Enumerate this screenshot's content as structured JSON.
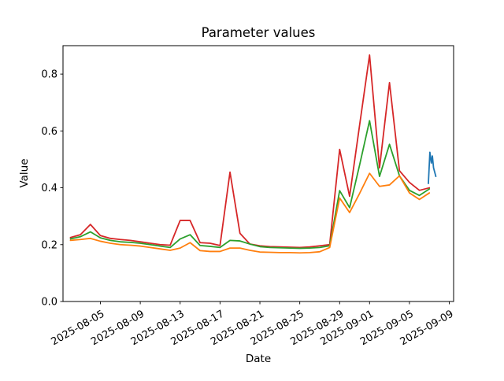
{
  "chart_data": {
    "type": "line",
    "title": "Parameter values",
    "xlabel": "Date",
    "ylabel": "Value",
    "grid": false,
    "legend": "none",
    "ylim": [
      0.0,
      0.9
    ],
    "xlim_dates": [
      "2025-08-01",
      "2025-09-10"
    ],
    "x_tick_labels": [
      "2025-08-05",
      "2025-08-09",
      "2025-08-13",
      "2025-08-17",
      "2025-08-21",
      "2025-08-25",
      "2025-08-29",
      "2025-09-01",
      "2025-09-05",
      "2025-09-09"
    ],
    "y_tick_labels": [
      "0.0",
      "0.2",
      "0.4",
      "0.6",
      "0.8"
    ],
    "epoch_date": "2025-08-02",
    "series": [
      {
        "name": "red",
        "color": "#d62728",
        "cadence": "daily",
        "start_date": "2025-08-02",
        "values": [
          0.225,
          0.235,
          0.271,
          0.232,
          0.222,
          0.218,
          0.215,
          0.21,
          0.205,
          0.2,
          0.198,
          0.285,
          0.285,
          0.207,
          0.205,
          0.197,
          0.455,
          0.24,
          0.202,
          0.196,
          0.193,
          0.192,
          0.191,
          0.19,
          0.192,
          0.196,
          0.2,
          0.535,
          0.37,
          0.62,
          0.867,
          0.47,
          0.77,
          0.46,
          0.419,
          0.391,
          0.4
        ]
      },
      {
        "name": "green",
        "color": "#2ca02c",
        "cadence": "daily",
        "start_date": "2025-08-02",
        "values": [
          0.22,
          0.228,
          0.245,
          0.224,
          0.215,
          0.21,
          0.208,
          0.205,
          0.2,
          0.195,
          0.19,
          0.22,
          0.235,
          0.197,
          0.194,
          0.19,
          0.215,
          0.213,
          0.202,
          0.193,
          0.19,
          0.189,
          0.188,
          0.187,
          0.188,
          0.19,
          0.196,
          0.39,
          0.33,
          0.48,
          0.636,
          0.44,
          0.553,
          0.442,
          0.391,
          0.373,
          0.396
        ]
      },
      {
        "name": "orange",
        "color": "#ff7f0e",
        "cadence": "daily",
        "start_date": "2025-08-02",
        "values": [
          0.215,
          0.218,
          0.222,
          0.212,
          0.205,
          0.2,
          0.198,
          0.195,
          0.19,
          0.185,
          0.18,
          0.188,
          0.207,
          0.179,
          0.176,
          0.176,
          0.188,
          0.188,
          0.18,
          0.174,
          0.173,
          0.172,
          0.172,
          0.171,
          0.172,
          0.175,
          0.19,
          0.364,
          0.313,
          0.38,
          0.451,
          0.405,
          0.41,
          0.442,
          0.382,
          0.359,
          0.382
        ]
      },
      {
        "name": "blue",
        "color": "#1f77b4",
        "cadence": "sub-daily",
        "day_offsets": [
          35.9,
          36.05,
          36.2,
          36.3,
          36.42,
          36.65
        ],
        "values": [
          0.415,
          0.525,
          0.487,
          0.512,
          0.47,
          0.44
        ]
      }
    ]
  }
}
